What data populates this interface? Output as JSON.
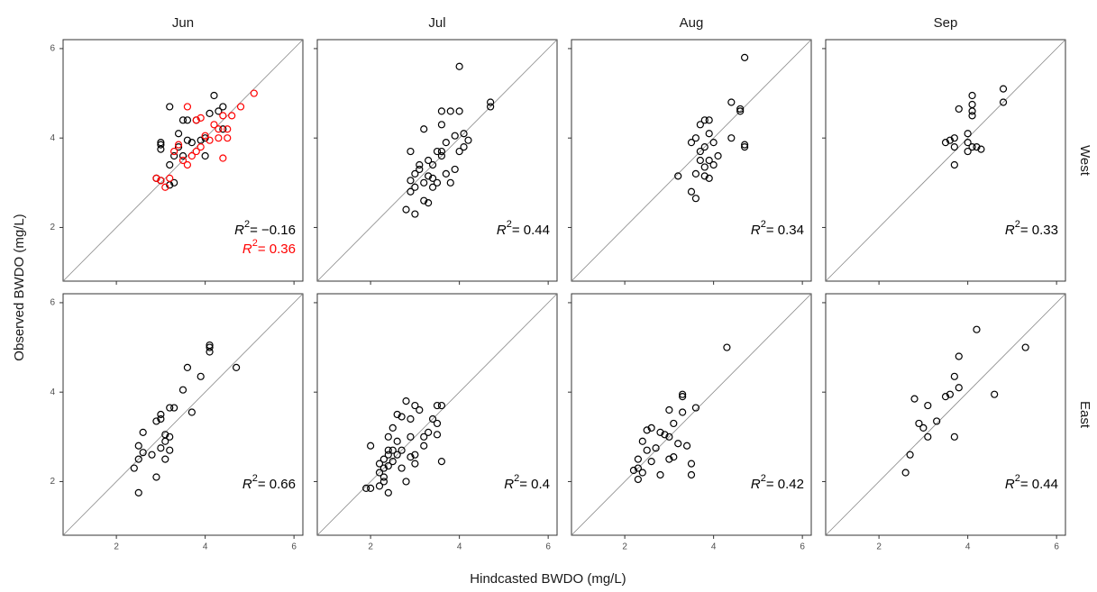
{
  "chart_data": {
    "type": "scatter",
    "x_label": "Hindcasted BWDO (mg/L)",
    "y_label": "Observed BWDO (mg/L)",
    "columns": [
      "Jun",
      "Jul",
      "Aug",
      "Sep"
    ],
    "rows": [
      "West",
      "East"
    ],
    "xlim": [
      0.8,
      6.2
    ],
    "ylim": [
      0.8,
      6.2
    ],
    "xticks": [
      2,
      4,
      6
    ],
    "yticks": [
      2,
      4,
      6
    ],
    "r2_symbol": "R",
    "r2_exponent": "2",
    "panels": [
      {
        "series": [
          {
            "color": "#000000",
            "x": [
              3.2,
              4.2,
              3.0,
              3.0,
              3.0,
              3.5,
              3.6,
              3.3,
              3.2,
              3.4,
              3.7,
              3.8,
              4.0,
              3.9,
              4.3,
              4.4,
              4.1,
              2.9,
              3.0,
              3.2,
              3.3,
              3.4,
              4.4,
              3.6,
              4.0,
              3.5
            ],
            "values": [
              4.7,
              4.95,
              3.85,
              3.75,
              3.9,
              4.4,
              4.4,
              3.6,
              3.4,
              4.1,
              3.9,
              4.4,
              3.6,
              3.95,
              4.6,
              4.7,
              4.55,
              3.1,
              3.05,
              2.95,
              3.0,
              3.8,
              4.2,
              3.95,
              4.0,
              3.6
            ]
          },
          {
            "color": "#ff0000",
            "x": [
              3.6,
              3.8,
              3.9,
              4.4,
              4.6,
              4.8,
              5.1,
              4.2,
              4.3,
              4.5,
              4.3,
              4.0,
              4.1,
              3.9,
              3.4,
              3.3,
              3.5,
              3.6,
              3.7,
              3.2,
              3.1,
              2.9,
              3.0,
              4.4,
              3.8,
              4.5
            ],
            "values": [
              4.7,
              4.4,
              4.45,
              4.5,
              4.5,
              4.7,
              5.0,
              4.3,
              4.2,
              4.2,
              4.0,
              4.05,
              3.95,
              3.8,
              3.85,
              3.7,
              3.5,
              3.4,
              3.6,
              3.1,
              2.9,
              3.1,
              3.05,
              3.55,
              3.7,
              4.0
            ]
          }
        ],
        "r2": [
          {
            "text": "= −0.16",
            "color": "#000000"
          },
          {
            "text": "= 0.36",
            "color": "#ff0000"
          }
        ]
      },
      {
        "series": [
          {
            "color": "#000000",
            "x": [
              4.0,
              4.7,
              4.7,
              3.8,
              4.0,
              3.6,
              3.2,
              3.6,
              4.1,
              4.2,
              3.9,
              3.7,
              3.5,
              3.6,
              3.3,
              3.0,
              3.1,
              2.9,
              3.2,
              3.4,
              3.5,
              3.8,
              3.9,
              3.4,
              2.8,
              3.0,
              3.2,
              3.3,
              2.9,
              3.1,
              3.4,
              4.0,
              3.7,
              3.3,
              3.6,
              4.1,
              3.0,
              2.9
            ],
            "values": [
              5.6,
              4.8,
              4.7,
              4.6,
              4.6,
              4.6,
              4.2,
              4.3,
              4.1,
              3.95,
              4.05,
              3.9,
              3.7,
              3.6,
              3.5,
              3.2,
              3.3,
              3.05,
              3.0,
              2.9,
              3.0,
              3.0,
              3.3,
              3.4,
              2.4,
              2.3,
              2.6,
              2.55,
              3.7,
              3.4,
              3.1,
              3.7,
              3.2,
              3.15,
              3.7,
              3.8,
              2.9,
              2.8
            ]
          }
        ],
        "r2": [
          {
            "text": "= 0.44",
            "color": "#000000"
          }
        ]
      },
      {
        "series": [
          {
            "color": "#000000",
            "x": [
              4.7,
              4.4,
              4.6,
              4.6,
              3.9,
              3.8,
              3.7,
              3.9,
              3.6,
              3.5,
              3.8,
              4.0,
              3.7,
              3.9,
              3.8,
              4.0,
              3.6,
              3.9,
              3.8,
              3.5,
              3.6,
              3.2,
              4.7,
              4.7,
              4.4,
              4.1,
              3.7
            ],
            "values": [
              5.8,
              4.8,
              4.65,
              4.6,
              4.4,
              4.4,
              4.3,
              4.1,
              4.0,
              3.9,
              3.8,
              3.9,
              3.7,
              3.5,
              3.35,
              3.4,
              3.2,
              3.1,
              3.15,
              2.8,
              2.65,
              3.15,
              3.8,
              3.85,
              4.0,
              3.6,
              3.5
            ]
          }
        ],
        "r2": [
          {
            "text": "= 0.34",
            "color": "#000000"
          }
        ]
      },
      {
        "series": [
          {
            "color": "#000000",
            "x": [
              4.8,
              4.8,
              4.1,
              4.1,
              4.1,
              4.1,
              3.8,
              4.0,
              3.7,
              3.6,
              3.5,
              3.7,
              4.0,
              4.1,
              4.0,
              4.3,
              4.2,
              3.7
            ],
            "values": [
              5.1,
              4.8,
              4.95,
              4.75,
              4.6,
              4.5,
              4.65,
              4.1,
              4.0,
              3.95,
              3.9,
              3.8,
              3.9,
              3.8,
              3.7,
              3.75,
              3.8,
              3.4
            ]
          }
        ],
        "r2": [
          {
            "text": "= 0.33",
            "color": "#000000"
          }
        ]
      },
      {
        "series": [
          {
            "color": "#000000",
            "x": [
              4.1,
              4.1,
              4.1,
              4.7,
              3.6,
              3.9,
              3.5,
              3.7,
              3.2,
              3.3,
              3.0,
              3.0,
              2.9,
              3.2,
              3.1,
              3.0,
              3.2,
              3.1,
              2.6,
              2.5,
              2.6,
              2.8,
              2.5,
              2.4,
              2.9,
              2.5,
              3.1
            ],
            "values": [
              5.05,
              5.0,
              4.9,
              4.55,
              4.55,
              4.35,
              4.05,
              3.55,
              3.65,
              3.65,
              3.5,
              3.4,
              3.35,
              3.0,
              2.9,
              2.75,
              2.7,
              2.5,
              3.1,
              2.8,
              2.65,
              2.6,
              2.5,
              2.3,
              2.1,
              1.75,
              3.05
            ]
          }
        ],
        "r2": [
          {
            "text": "= 0.66",
            "color": "#000000"
          }
        ]
      },
      {
        "series": [
          {
            "color": "#000000",
            "x": [
              3.6,
              3.5,
              3.0,
              2.8,
              3.1,
              2.6,
              2.7,
              2.9,
              3.4,
              3.5,
              3.3,
              3.5,
              2.5,
              2.4,
              2.9,
              3.2,
              2.7,
              2.5,
              2.6,
              2.4,
              2.3,
              2.5,
              2.4,
              2.3,
              2.2,
              2.3,
              2.3,
              2.2,
              1.9,
              2.0,
              2.4,
              2.8,
              3.0,
              3.6,
              2.0,
              2.6,
              2.9,
              2.7,
              2.4,
              2.2,
              3.0,
              3.2
            ],
            "values": [
              3.7,
              3.7,
              3.7,
              3.8,
              3.6,
              3.5,
              3.45,
              3.4,
              3.4,
              3.3,
              3.1,
              3.05,
              3.2,
              3.0,
              3.0,
              2.8,
              2.7,
              2.7,
              2.6,
              2.6,
              2.5,
              2.45,
              2.35,
              2.3,
              2.2,
              2.1,
              2.0,
              1.9,
              1.85,
              1.85,
              1.75,
              2.0,
              2.4,
              2.45,
              2.8,
              2.9,
              2.55,
              2.3,
              2.7,
              2.4,
              2.6,
              3.0
            ]
          }
        ],
        "r2": [
          {
            "text": "= 0.4",
            "color": "#000000"
          }
        ]
      },
      {
        "series": [
          {
            "color": "#000000",
            "x": [
              4.3,
              3.6,
              3.3,
              3.3,
              3.0,
              3.3,
              3.1,
              2.6,
              2.5,
              2.8,
              2.9,
              3.0,
              3.2,
              2.4,
              2.5,
              2.7,
              2.3,
              2.6,
              3.4,
              3.0,
              3.5,
              3.5,
              2.8,
              2.3,
              2.2,
              2.4,
              2.3,
              3.1
            ],
            "values": [
              5.0,
              3.65,
              3.95,
              3.9,
              3.6,
              3.55,
              3.3,
              3.2,
              3.15,
              3.1,
              3.05,
              3.0,
              2.85,
              2.9,
              2.7,
              2.75,
              2.5,
              2.45,
              2.8,
              2.5,
              2.4,
              2.15,
              2.15,
              2.3,
              2.25,
              2.2,
              2.05,
              2.55
            ]
          }
        ],
        "r2": [
          {
            "text": "= 0.42",
            "color": "#000000"
          }
        ]
      },
      {
        "series": [
          {
            "color": "#000000",
            "x": [
              4.2,
              5.3,
              3.8,
              3.7,
              3.8,
              4.6,
              3.6,
              3.5,
              3.3,
              3.1,
              2.8,
              2.9,
              3.0,
              3.1,
              3.7,
              2.7,
              2.6
            ],
            "values": [
              5.4,
              5.0,
              4.8,
              4.35,
              4.1,
              3.95,
              3.95,
              3.9,
              3.35,
              3.7,
              3.85,
              3.3,
              3.2,
              3.0,
              3.0,
              2.6,
              2.2
            ]
          }
        ],
        "r2": [
          {
            "text": "= 0.44",
            "color": "#000000"
          }
        ]
      }
    ]
  }
}
